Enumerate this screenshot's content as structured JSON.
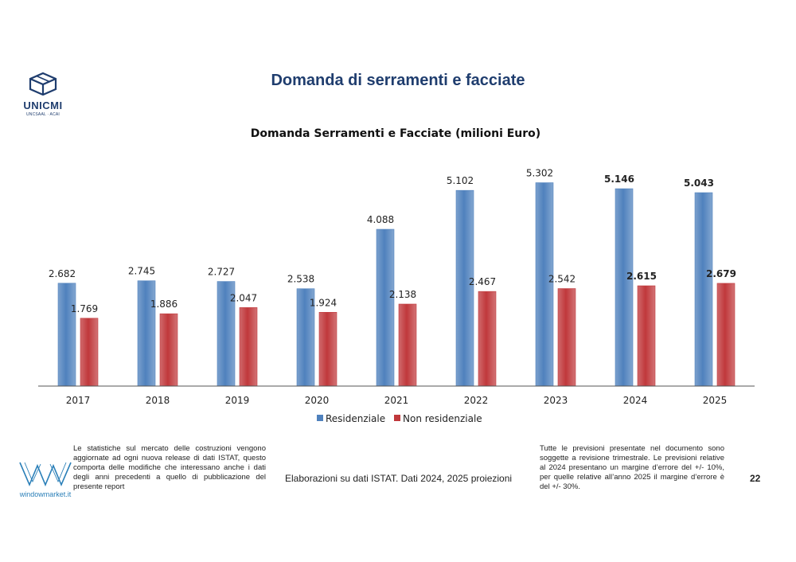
{
  "header": {
    "title": "Domanda di serramenti e facciate",
    "logo_name": "UNICMI",
    "logo_sub": "UNCSAAL · ACAI"
  },
  "chart_data": {
    "type": "bar",
    "title": "Domanda Serramenti e Facciate (milioni Euro)",
    "categories": [
      "2017",
      "2018",
      "2019",
      "2020",
      "2021",
      "2022",
      "2023",
      "2024",
      "2025"
    ],
    "series": [
      {
        "name": "Residenziale",
        "color": "#4f81bd",
        "values": [
          2682,
          2745,
          2727,
          2538,
          4088,
          5102,
          5302,
          5146,
          5043
        ],
        "labels": [
          "2.682",
          "2.745",
          "2.727",
          "2.538",
          "4.088",
          "5.102",
          "5.302",
          "5.146",
          "5.043"
        ]
      },
      {
        "name": "Non residenziale",
        "color": "#c0383b",
        "values": [
          1769,
          1886,
          2047,
          1924,
          2138,
          2467,
          2542,
          2615,
          2679
        ],
        "labels": [
          "1.769",
          "1.886",
          "2.047",
          "1.924",
          "2.138",
          "2.467",
          "2.542",
          "2.615",
          "2.679"
        ]
      }
    ],
    "bold_label_categories": [
      "2024",
      "2025"
    ],
    "ylim": [
      0,
      5500
    ],
    "grid": false,
    "legend_position": "bottom"
  },
  "footer": {
    "wm_text": "windowmarket.it",
    "note_left": "Le statistiche sul mercato delle costruzioni vengono aggiornate ad ogni nuova release di dati ISTAT, questo comporta delle modifiche che interessano anche i dati degli anni precedenti a quello di pubblicazione del presente report",
    "source": "Elaborazioni su dati ISTAT. Dati 2024, 2025 proiezioni",
    "note_right": "Tutte le previsioni presentate nel documento sono soggette a revisione trimestrale. Le previsioni relative al 2024 presentano un margine d’errore del +/- 10%, per quelle relative all’anno 2025 il margine d’errore è del +/- 30%.",
    "page_number": "22"
  }
}
